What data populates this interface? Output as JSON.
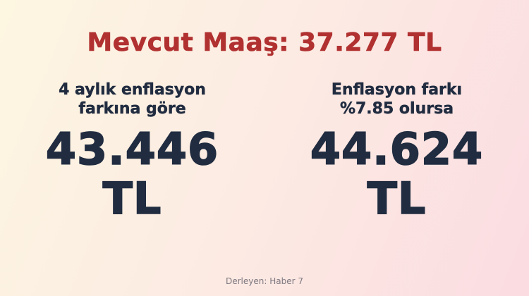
{
  "title": "Mevcut Maaş: 37.277 TL",
  "columns": [
    {
      "heading_line1": "4 aylık enflasyon",
      "heading_line2": "farkına göre",
      "amount": "43.446",
      "unit": "TL"
    },
    {
      "heading_line1": "Enflasyon farkı",
      "heading_line2": "%7.85 olursa",
      "amount": "44.624",
      "unit": "TL"
    }
  ],
  "footer": "Derleyen: Haber 7",
  "colors": {
    "title_red": "#b13131",
    "value_navy": "#212c40",
    "footer_gray": "#7d7880",
    "bg_cream": "#fdf6e1",
    "bg_pink": "#fbdce1"
  },
  "chart_data": {
    "type": "table",
    "title": "Mevcut Maaş: 37.277 TL",
    "current_salary_tl": 37277,
    "categories": [
      "4 aylık enflasyon farkına göre",
      "Enflasyon farkı %7.85 olursa"
    ],
    "values": [
      43446,
      44624
    ],
    "unit": "TL",
    "inflation_difference_percent": 7.85,
    "source": "Derleyen: Haber 7"
  }
}
